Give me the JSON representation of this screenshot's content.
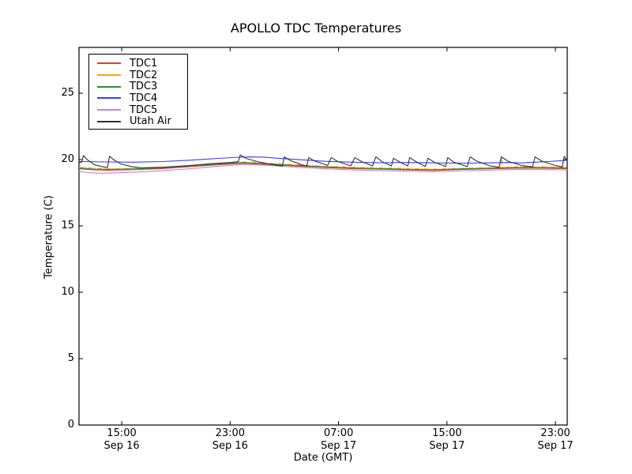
{
  "chart_data": {
    "type": "line",
    "title": "APOLLO TDC Temperatures",
    "xlabel": "Date (GMT)",
    "ylabel": "Temperature (C)",
    "x_unit": "hours since Sep 16 00:00 GMT",
    "xlim": [
      11.85,
      47.87
    ],
    "ylim": [
      0,
      28.45
    ],
    "yticks": [
      0,
      5,
      10,
      15,
      20,
      25
    ],
    "xticks": [
      {
        "value": 15,
        "time": "15:00",
        "date": "Sep 16"
      },
      {
        "value": 23,
        "time": "23:00",
        "date": "Sep 16"
      },
      {
        "value": 31,
        "time": "07:00",
        "date": "Sep 17"
      },
      {
        "value": 39,
        "time": "15:00",
        "date": "Sep 17"
      },
      {
        "value": 47,
        "time": "23:00",
        "date": "Sep 17"
      }
    ],
    "grid": false,
    "legend_position": "upper left",
    "axis_color": "#000000",
    "background_color": "#ffffff",
    "series": [
      {
        "name": "TDC1",
        "color": "#dd3c3c",
        "style": "solid",
        "points": [
          [
            11.85,
            19.3
          ],
          [
            13,
            19.22
          ],
          [
            14,
            19.2
          ],
          [
            16,
            19.24
          ],
          [
            18,
            19.32
          ],
          [
            20,
            19.46
          ],
          [
            22,
            19.6
          ],
          [
            24,
            19.72
          ],
          [
            26,
            19.62
          ],
          [
            28,
            19.5
          ],
          [
            30,
            19.4
          ],
          [
            32,
            19.32
          ],
          [
            34,
            19.28
          ],
          [
            36,
            19.22
          ],
          [
            38,
            19.18
          ],
          [
            40,
            19.25
          ],
          [
            42,
            19.3
          ],
          [
            44,
            19.35
          ],
          [
            46,
            19.35
          ],
          [
            47.87,
            19.32
          ]
        ]
      },
      {
        "name": "TDC2",
        "color": "#ffa500",
        "style": "dashdot",
        "points": [
          [
            11.85,
            19.42
          ],
          [
            13,
            19.35
          ],
          [
            14,
            19.3
          ],
          [
            15,
            19.3
          ],
          [
            16,
            19.33
          ],
          [
            18,
            19.4
          ],
          [
            20,
            19.55
          ],
          [
            22,
            19.7
          ],
          [
            23,
            19.78
          ],
          [
            24,
            19.82
          ],
          [
            25,
            19.8
          ],
          [
            26,
            19.72
          ],
          [
            28,
            19.6
          ],
          [
            30,
            19.5
          ],
          [
            32,
            19.42
          ],
          [
            34,
            19.38
          ],
          [
            36,
            19.33
          ],
          [
            38,
            19.28
          ],
          [
            40,
            19.33
          ],
          [
            42,
            19.38
          ],
          [
            42.95,
            19.4
          ],
          [
            43.02,
            20.2
          ],
          [
            43.12,
            19.4
          ],
          [
            44,
            19.45
          ],
          [
            46,
            19.45
          ],
          [
            47.87,
            19.42
          ]
        ]
      },
      {
        "name": "TDC3",
        "color": "#338a33",
        "style": "solid",
        "points": [
          [
            11.85,
            19.36
          ],
          [
            13,
            19.28
          ],
          [
            14,
            19.26
          ],
          [
            16,
            19.3
          ],
          [
            18,
            19.38
          ],
          [
            20,
            19.52
          ],
          [
            22,
            19.66
          ],
          [
            24,
            19.77
          ],
          [
            26,
            19.67
          ],
          [
            28,
            19.55
          ],
          [
            30,
            19.45
          ],
          [
            32,
            19.37
          ],
          [
            34,
            19.32
          ],
          [
            36,
            19.27
          ],
          [
            38,
            19.23
          ],
          [
            40,
            19.3
          ],
          [
            42,
            19.35
          ],
          [
            44,
            19.4
          ],
          [
            46,
            19.4
          ],
          [
            47.87,
            19.37
          ]
        ]
      },
      {
        "name": "TDC4",
        "color": "#3a3aff",
        "style": "solid",
        "points": [
          [
            11.85,
            19.85
          ],
          [
            14,
            19.82
          ],
          [
            16,
            19.8
          ],
          [
            18,
            19.85
          ],
          [
            20,
            19.95
          ],
          [
            22,
            20.08
          ],
          [
            23.5,
            20.17
          ],
          [
            24.5,
            20.2
          ],
          [
            25.5,
            20.18
          ],
          [
            26.5,
            20.1
          ],
          [
            28,
            20.0
          ],
          [
            30,
            19.87
          ],
          [
            32,
            19.8
          ],
          [
            34,
            19.76
          ],
          [
            36,
            19.78
          ],
          [
            38,
            19.75
          ],
          [
            40,
            19.73
          ],
          [
            42,
            19.75
          ],
          [
            43.5,
            19.78
          ],
          [
            44.5,
            19.75
          ],
          [
            45.5,
            19.8
          ],
          [
            46.5,
            19.85
          ],
          [
            47.87,
            19.95
          ]
        ]
      },
      {
        "name": "TDC5",
        "color": "#c685d6",
        "style": "solid",
        "points": [
          [
            11.85,
            19.1
          ],
          [
            12.5,
            19.02
          ],
          [
            13.5,
            18.96
          ],
          [
            14.5,
            19.0
          ],
          [
            16,
            19.06
          ],
          [
            18,
            19.16
          ],
          [
            20,
            19.3
          ],
          [
            22,
            19.48
          ],
          [
            24,
            19.64
          ],
          [
            26,
            19.55
          ],
          [
            28,
            19.42
          ],
          [
            30,
            19.3
          ],
          [
            32,
            19.22
          ],
          [
            34,
            19.17
          ],
          [
            36,
            19.12
          ],
          [
            38,
            19.08
          ],
          [
            40,
            19.15
          ],
          [
            42,
            19.2
          ],
          [
            44,
            19.25
          ],
          [
            46,
            19.25
          ],
          [
            47.87,
            19.22
          ]
        ]
      },
      {
        "name": "Utah Air",
        "color": "#333333",
        "style": "solid",
        "points": [
          [
            11.85,
            19.75
          ],
          [
            12.05,
            19.82
          ],
          [
            12.18,
            20.3
          ],
          [
            12.45,
            20.0
          ],
          [
            13.0,
            19.6
          ],
          [
            13.6,
            19.46
          ],
          [
            13.95,
            19.4
          ],
          [
            14.1,
            20.25
          ],
          [
            14.45,
            19.95
          ],
          [
            15.0,
            19.65
          ],
          [
            15.8,
            19.45
          ],
          [
            16.5,
            19.38
          ],
          [
            18.0,
            19.42
          ],
          [
            20.0,
            19.55
          ],
          [
            21.5,
            19.68
          ],
          [
            23.0,
            19.78
          ],
          [
            23.6,
            19.84
          ],
          [
            23.75,
            20.35
          ],
          [
            24.2,
            20.08
          ],
          [
            25.0,
            19.85
          ],
          [
            26.0,
            19.63
          ],
          [
            26.85,
            19.5
          ],
          [
            27.0,
            20.2
          ],
          [
            27.45,
            19.92
          ],
          [
            28.3,
            19.6
          ],
          [
            28.65,
            19.52
          ],
          [
            28.8,
            20.15
          ],
          [
            29.25,
            19.88
          ],
          [
            30.2,
            19.56
          ],
          [
            30.45,
            20.15
          ],
          [
            30.95,
            19.85
          ],
          [
            31.9,
            19.53
          ],
          [
            32.2,
            20.15
          ],
          [
            32.7,
            19.85
          ],
          [
            33.5,
            19.52
          ],
          [
            33.75,
            20.2
          ],
          [
            34.2,
            19.85
          ],
          [
            34.9,
            19.52
          ],
          [
            35.05,
            20.1
          ],
          [
            35.5,
            19.82
          ],
          [
            36.1,
            19.52
          ],
          [
            36.25,
            20.15
          ],
          [
            36.7,
            19.85
          ],
          [
            37.4,
            19.48
          ],
          [
            37.6,
            20.1
          ],
          [
            38.1,
            19.78
          ],
          [
            38.9,
            19.48
          ],
          [
            39.05,
            20.15
          ],
          [
            39.5,
            19.8
          ],
          [
            40.5,
            19.47
          ],
          [
            40.7,
            20.2
          ],
          [
            41.2,
            19.88
          ],
          [
            42.2,
            19.52
          ],
          [
            42.85,
            19.42
          ],
          [
            43.0,
            20.2
          ],
          [
            43.5,
            19.88
          ],
          [
            44.5,
            19.55
          ],
          [
            45.3,
            19.45
          ],
          [
            45.5,
            20.2
          ],
          [
            46.0,
            19.88
          ],
          [
            47.0,
            19.55
          ],
          [
            47.5,
            19.45
          ],
          [
            47.65,
            20.25
          ],
          [
            47.87,
            19.95
          ]
        ]
      }
    ]
  }
}
